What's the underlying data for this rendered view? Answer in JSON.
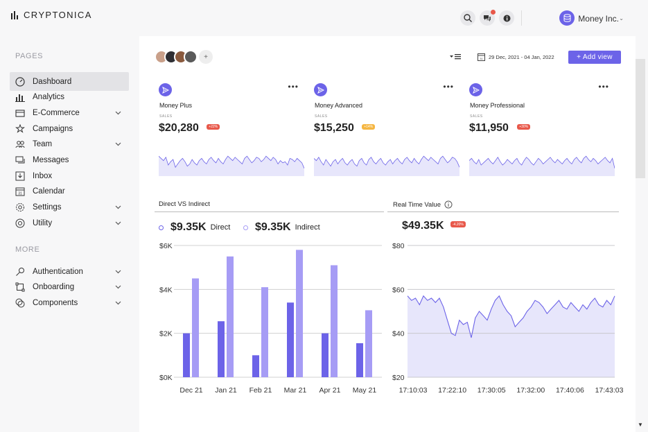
{
  "app": {
    "title": "Cryptonica"
  },
  "header": {
    "user_name": "Money Inc.",
    "notification_count_dot": true
  },
  "sidebar": {
    "section_pages": "PAGES",
    "section_more": "MORE",
    "pages_items": [
      {
        "label": "Dashboard",
        "icon": "dashboard-icon",
        "active": true,
        "has_chevron": false
      },
      {
        "label": "Analytics",
        "icon": "analytics-icon",
        "active": false,
        "has_chevron": false
      },
      {
        "label": "E-Commerce",
        "icon": "ecommerce-icon",
        "active": false,
        "has_chevron": true
      },
      {
        "label": "Campaigns",
        "icon": "campaigns-icon",
        "active": false,
        "has_chevron": false
      },
      {
        "label": "Team",
        "icon": "team-icon",
        "active": false,
        "has_chevron": true
      },
      {
        "label": "Messages",
        "icon": "messages-icon",
        "active": false,
        "has_chevron": false
      },
      {
        "label": "Inbox",
        "icon": "inbox-icon",
        "active": false,
        "has_chevron": false
      },
      {
        "label": "Calendar",
        "icon": "calendar-icon",
        "active": false,
        "has_chevron": false
      },
      {
        "label": "Settings",
        "icon": "settings-icon",
        "active": false,
        "has_chevron": true
      },
      {
        "label": "Utility",
        "icon": "utility-icon",
        "active": false,
        "has_chevron": true
      }
    ],
    "more_items": [
      {
        "label": "Authentication",
        "icon": "authentication-icon",
        "has_chevron": true
      },
      {
        "label": "Onboarding",
        "icon": "onboarding-icon",
        "has_chevron": true
      },
      {
        "label": "Components",
        "icon": "components-icon",
        "has_chevron": true
      }
    ]
  },
  "toolbar": {
    "date_range": "29 Dec, 2021 - 04 Jan, 2022",
    "add_view_label": "+ Add view",
    "avatar_add": "+"
  },
  "colors": {
    "accent": "#6c63e8",
    "accent_light": "#a69cf5",
    "negative": "#e8584a",
    "warning": "#f5b642"
  },
  "cards": [
    {
      "title": "Money Plus",
      "sales_label": "SALES",
      "value": "$20,280",
      "badge": "+22%",
      "badge_color": "#e8584a",
      "sparkline": [
        38,
        36,
        34,
        37,
        30,
        33,
        35,
        28,
        31,
        34,
        36,
        33,
        29,
        31,
        35,
        32,
        30,
        34,
        36,
        33,
        31,
        35,
        37,
        34,
        32,
        36,
        33,
        31,
        35,
        38,
        36,
        34,
        37,
        35,
        33,
        31,
        36,
        38,
        35,
        32,
        34,
        37,
        36,
        33,
        35,
        38,
        36,
        34,
        37,
        35,
        31,
        34,
        32,
        33,
        30,
        36,
        35,
        33,
        36,
        34,
        32,
        27
      ]
    },
    {
      "title": "Money Advanced",
      "sales_label": "SALES",
      "value": "$15,250",
      "badge": "+14%",
      "badge_color": "#f5b642",
      "sparkline": [
        36,
        34,
        37,
        33,
        30,
        35,
        32,
        29,
        33,
        35,
        31,
        34,
        36,
        32,
        30,
        33,
        35,
        31,
        29,
        34,
        36,
        32,
        30,
        35,
        37,
        33,
        31,
        34,
        36,
        32,
        30,
        33,
        35,
        31,
        34,
        36,
        33,
        31,
        35,
        37,
        34,
        32,
        36,
        33,
        31,
        35,
        38,
        36,
        34,
        37,
        35,
        33,
        31,
        36,
        38,
        35,
        32,
        34,
        37,
        36,
        33,
        28
      ]
    },
    {
      "title": "Money Professional",
      "sales_label": "SALES",
      "value": "$11,950",
      "badge": "+30%",
      "badge_color": "#e8584a",
      "sparkline": [
        34,
        36,
        33,
        31,
        35,
        30,
        32,
        34,
        36,
        33,
        31,
        34,
        37,
        33,
        30,
        32,
        35,
        33,
        31,
        34,
        36,
        32,
        30,
        34,
        37,
        35,
        32,
        30,
        33,
        36,
        34,
        31,
        33,
        35,
        37,
        34,
        32,
        35,
        33,
        31,
        34,
        36,
        33,
        31,
        35,
        37,
        34,
        32,
        36,
        38,
        35,
        33,
        36,
        34,
        31,
        33,
        35,
        37,
        34,
        32,
        36,
        27
      ]
    }
  ],
  "direct_vs_indirect": {
    "title": "Direct VS Indirect",
    "legend": [
      {
        "value": "$9.35K",
        "name": "Direct"
      },
      {
        "value": "$9.35K",
        "name": "Indirect"
      }
    ]
  },
  "real_time": {
    "title": "Real Time Value",
    "value": "$49.35K",
    "badge": "-4.20%"
  },
  "chart_data": [
    {
      "type": "bar",
      "title": "Direct VS Indirect",
      "categories": [
        "Dec 21",
        "Jan 21",
        "Feb 21",
        "Mar 21",
        "Apr 21",
        "May 21"
      ],
      "series": [
        {
          "name": "Direct",
          "values": [
            2000,
            2550,
            1000,
            3400,
            2000,
            1550
          ],
          "color": "#6c63e8"
        },
        {
          "name": "Indirect",
          "values": [
            4500,
            5500,
            4100,
            5800,
            5100,
            3050
          ],
          "color": "#a69cf5"
        }
      ],
      "yticks": [
        "$0K",
        "$2K",
        "$4K",
        "$6K"
      ],
      "ylim": [
        0,
        6000
      ],
      "grid": true
    },
    {
      "type": "area",
      "title": "Real Time Value",
      "xticks": [
        "17:10:03",
        "17:22:10",
        "17:30:05",
        "17:32:00",
        "17:40:06",
        "17:43:03"
      ],
      "yticks": [
        "$20",
        "$40",
        "$60",
        "$80"
      ],
      "ylim": [
        20,
        80
      ],
      "values": [
        57,
        55,
        56,
        53,
        57,
        55,
        56,
        54,
        56,
        52,
        46,
        40,
        39,
        46,
        44,
        45,
        38,
        47,
        50,
        48,
        46,
        51,
        55,
        57,
        53,
        50,
        48,
        43,
        45,
        47,
        50,
        52,
        55,
        54,
        52,
        49,
        51,
        53,
        55,
        52,
        51,
        54,
        52,
        50,
        53,
        51,
        54,
        56,
        53,
        52,
        55,
        53,
        57
      ],
      "grid": true
    }
  ]
}
